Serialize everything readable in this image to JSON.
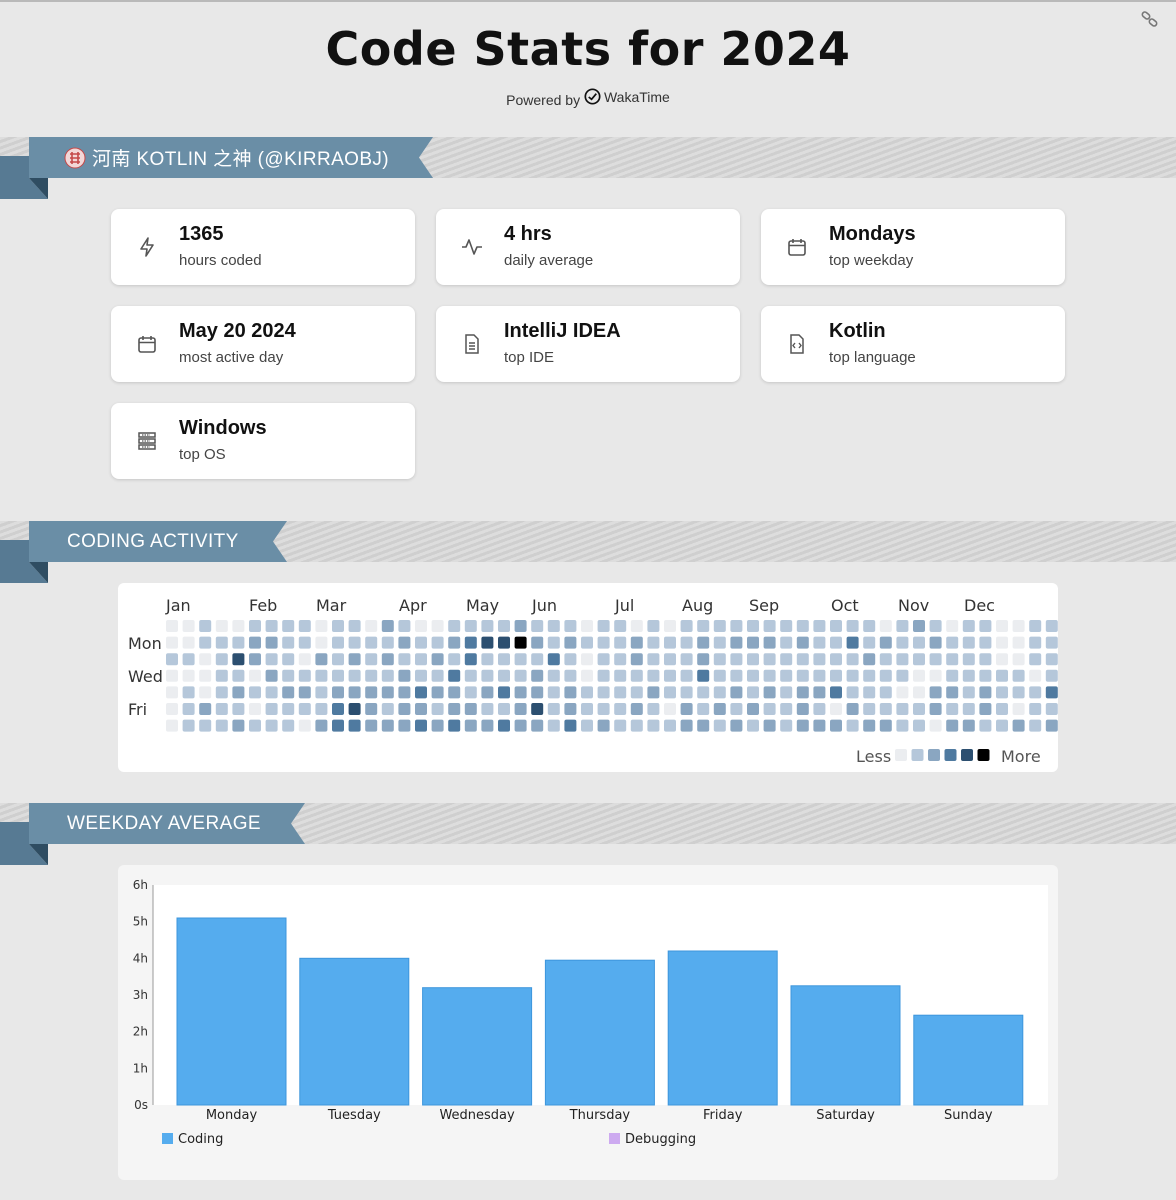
{
  "header": {
    "title": "Code Stats for 2024",
    "powered_by": "Powered by",
    "brand": "WakaTime",
    "link_icon": "link-icon"
  },
  "profile": {
    "avatar_icon": "avatar",
    "name": "河南 KOTLIN 之神 (@KIRRAOBJ)"
  },
  "stats": [
    {
      "value": "1365",
      "label": "hours coded",
      "icon": "lightning-icon"
    },
    {
      "value": "4 hrs",
      "label": "daily average",
      "icon": "activity-icon"
    },
    {
      "value": "Mondays",
      "label": "top weekday",
      "icon": "calendar-icon"
    },
    {
      "value": "May 20 2024",
      "label": "most active day",
      "icon": "calendar-icon"
    },
    {
      "value": "IntelliJ IDEA",
      "label": "top IDE",
      "icon": "document-icon"
    },
    {
      "value": "Kotlin",
      "label": "top language",
      "icon": "code-file-icon"
    },
    {
      "value": "Windows",
      "label": "top OS",
      "icon": "server-icon"
    }
  ],
  "activity": {
    "section_title": "CODING ACTIVITY",
    "months": [
      "Jan",
      "Feb",
      "Mar",
      "Apr",
      "May",
      "Jun",
      "Jul",
      "Aug",
      "Sep",
      "Oct",
      "Nov",
      "Dec"
    ],
    "weekday_labels": [
      "Mon",
      "Wed",
      "Fri"
    ],
    "legend_less": "Less",
    "legend_more": "More",
    "levels_colors": [
      "#ebedf0",
      "#b5c7da",
      "#8aa6c1",
      "#4f7aa0",
      "#2c4f70",
      "#000000"
    ],
    "heatmap_levels": [
      [
        0,
        0,
        1,
        0,
        0,
        1,
        1,
        1,
        1,
        0,
        1,
        1,
        0,
        2,
        1,
        0,
        0,
        1,
        1,
        1,
        1,
        2,
        1,
        1,
        1,
        0,
        1,
        1,
        0,
        1,
        0,
        1,
        1,
        1,
        1,
        1,
        1,
        1,
        1,
        1,
        1,
        1,
        1,
        0,
        1,
        2,
        1,
        0,
        1,
        1,
        0,
        0,
        1,
        1,
        1,
        2,
        2,
        2
      ],
      [
        0,
        0,
        1,
        1,
        1,
        2,
        2,
        1,
        1,
        0,
        1,
        1,
        1,
        1,
        2,
        1,
        1,
        2,
        3,
        4,
        4,
        5,
        2,
        1,
        2,
        1,
        1,
        1,
        2,
        1,
        1,
        1,
        2,
        1,
        2,
        2,
        2,
        1,
        2,
        1,
        1,
        3,
        1,
        2,
        1,
        1,
        2,
        1,
        1,
        1,
        0,
        0,
        1,
        1,
        1,
        1,
        2,
        3
      ],
      [
        1,
        1,
        0,
        1,
        4,
        2,
        1,
        1,
        0,
        2,
        1,
        2,
        1,
        2,
        1,
        1,
        2,
        1,
        3,
        1,
        1,
        1,
        1,
        3,
        1,
        0,
        1,
        1,
        2,
        1,
        1,
        1,
        2,
        1,
        1,
        1,
        1,
        1,
        1,
        1,
        1,
        1,
        2,
        1,
        1,
        1,
        1,
        1,
        1,
        1,
        0,
        0,
        1,
        1,
        1,
        1,
        2,
        2
      ],
      [
        0,
        0,
        0,
        1,
        1,
        0,
        2,
        1,
        1,
        1,
        1,
        1,
        1,
        1,
        2,
        1,
        1,
        3,
        1,
        1,
        1,
        1,
        2,
        1,
        1,
        0,
        1,
        1,
        1,
        1,
        1,
        1,
        3,
        1,
        1,
        1,
        1,
        1,
        1,
        1,
        1,
        1,
        1,
        1,
        1,
        0,
        0,
        1,
        1,
        1,
        1,
        1,
        0,
        1,
        1,
        1,
        1,
        3
      ],
      [
        0,
        1,
        0,
        1,
        2,
        1,
        1,
        2,
        2,
        1,
        2,
        2,
        2,
        2,
        2,
        3,
        2,
        2,
        1,
        2,
        3,
        2,
        2,
        1,
        2,
        1,
        1,
        1,
        1,
        2,
        1,
        1,
        1,
        1,
        2,
        1,
        2,
        1,
        2,
        2,
        3,
        1,
        1,
        1,
        0,
        0,
        2,
        2,
        1,
        2,
        1,
        1,
        1,
        3,
        1,
        1,
        1,
        0
      ],
      [
        0,
        1,
        2,
        1,
        1,
        0,
        1,
        1,
        1,
        1,
        3,
        4,
        2,
        1,
        2,
        2,
        1,
        2,
        2,
        1,
        1,
        2,
        4,
        1,
        2,
        1,
        1,
        1,
        2,
        1,
        0,
        2,
        1,
        2,
        1,
        2,
        1,
        1,
        2,
        1,
        0,
        2,
        1,
        1,
        1,
        1,
        2,
        1,
        1,
        2,
        1,
        0,
        1,
        1,
        2,
        1,
        0,
        2
      ],
      [
        0,
        1,
        1,
        1,
        2,
        1,
        1,
        1,
        0,
        2,
        3,
        3,
        2,
        2,
        2,
        3,
        2,
        3,
        2,
        2,
        3,
        2,
        2,
        1,
        3,
        1,
        2,
        1,
        1,
        1,
        1,
        2,
        2,
        1,
        2,
        1,
        2,
        1,
        2,
        2,
        2,
        1,
        2,
        2,
        1,
        1,
        0,
        2,
        2,
        1,
        1,
        2,
        1,
        2,
        1,
        1,
        2,
        2
      ]
    ]
  },
  "weekday": {
    "section_title": "WEEKDAY AVERAGE"
  },
  "chart_data": {
    "type": "bar",
    "categories": [
      "Monday",
      "Tuesday",
      "Wednesday",
      "Thursday",
      "Friday",
      "Saturday",
      "Sunday"
    ],
    "series": [
      {
        "name": "Coding",
        "values": [
          5.1,
          4.0,
          3.2,
          3.95,
          4.2,
          3.25,
          2.45
        ],
        "color": "#55acee"
      },
      {
        "name": "Debugging",
        "values": [
          0,
          0,
          0,
          0,
          0,
          0,
          0
        ],
        "color": "#cdaaf0"
      }
    ],
    "yticks": [
      "0s",
      "1h",
      "2h",
      "3h",
      "4h",
      "5h",
      "6h"
    ],
    "ylim": [
      0,
      6
    ],
    "ylabel": "",
    "xlabel": "",
    "title": "",
    "legend": "bottom",
    "grid": false
  }
}
